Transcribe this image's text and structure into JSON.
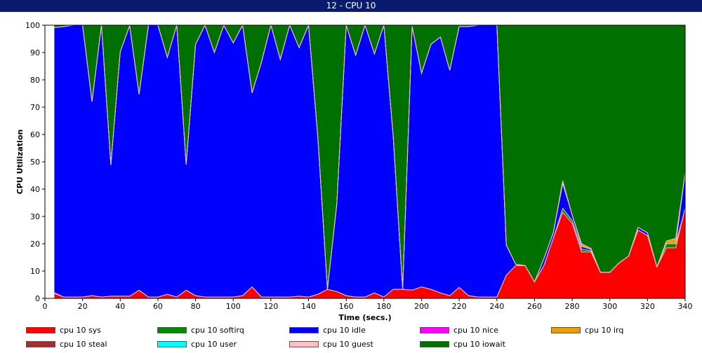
{
  "window_title": "12 - CPU 10",
  "chart_data": {
    "type": "area",
    "stacked": true,
    "xlabel": "Time (secs.)",
    "ylabel": "CPU Utilization",
    "xlim": [
      0,
      340
    ],
    "ylim": [
      0,
      100
    ],
    "x_ticks": [
      0,
      20,
      40,
      60,
      80,
      100,
      120,
      140,
      160,
      180,
      200,
      220,
      240,
      260,
      280,
      300,
      320,
      340
    ],
    "y_ticks": [
      0,
      10,
      20,
      30,
      40,
      50,
      60,
      70,
      80,
      90,
      100
    ],
    "grid": false,
    "legend_position": "bottom",
    "x": [
      5,
      10,
      15,
      20,
      25,
      30,
      35,
      40,
      45,
      50,
      55,
      60,
      65,
      70,
      75,
      80,
      85,
      90,
      95,
      100,
      105,
      110,
      115,
      120,
      125,
      130,
      135,
      140,
      145,
      150,
      155,
      160,
      165,
      170,
      175,
      180,
      185,
      190,
      195,
      200,
      205,
      210,
      215,
      220,
      225,
      230,
      235,
      240,
      245,
      250,
      255,
      260,
      265,
      270,
      275,
      280,
      285,
      290,
      295,
      300,
      305,
      310,
      315,
      320,
      325,
      330,
      335,
      340
    ],
    "series": [
      {
        "name": "cpu 10 sys",
        "color": "#ff0000",
        "values": [
          1.8,
          0.5,
          0.5,
          0.5,
          1,
          0.5,
          0.8,
          0.8,
          0.8,
          3,
          0.5,
          0.5,
          1.5,
          0.5,
          3,
          1,
          0.5,
          0.5,
          0.5,
          0.5,
          1,
          4.2,
          0.5,
          0.5,
          0.5,
          0.5,
          0.8,
          0.5,
          1.5,
          3.3,
          2.5,
          1,
          0.5,
          0.5,
          2,
          0.5,
          3.3,
          3.3,
          3,
          4.2,
          3.3,
          2,
          1,
          4,
          1,
          0.5,
          0.5,
          0.5,
          8.5,
          12,
          12,
          6,
          12,
          22,
          31.5,
          27.5,
          17,
          17,
          9.5,
          9.5,
          13,
          15.5,
          25,
          23,
          11.5,
          18.5,
          18.5,
          33
        ]
      },
      {
        "name": "cpu 10 softirq",
        "color": "#008c00",
        "values": [
          0.3,
          0,
          0,
          0,
          0,
          0,
          0,
          0,
          0,
          0,
          0,
          0,
          0,
          0,
          0,
          0,
          0,
          0,
          0,
          0,
          0,
          0,
          0,
          0,
          0,
          0,
          0,
          0,
          0,
          0,
          0,
          0,
          0,
          0,
          0,
          0,
          0,
          0,
          0,
          0,
          0,
          0,
          0,
          0,
          0,
          0,
          0,
          0,
          0,
          0,
          0,
          0,
          0,
          0,
          1.5,
          1,
          1,
          0.5,
          0,
          0,
          0,
          0,
          0,
          0,
          0,
          1.5,
          1.5,
          0
        ]
      },
      {
        "name": "cpu 10 idle",
        "color": "#0000ff",
        "values": [
          97,
          99,
          99.5,
          99.5,
          71,
          99.5,
          48,
          89.5,
          99,
          71.7,
          99.5,
          99.5,
          86.7,
          99.5,
          46,
          92,
          99.5,
          89.5,
          99.5,
          93,
          99,
          71,
          86,
          99.5,
          87,
          99.5,
          91,
          99.5,
          57,
          0,
          32,
          99,
          88.5,
          99.5,
          87.5,
          99.5,
          55.7,
          0,
          96.5,
          78.2,
          89.7,
          93.7,
          82.5,
          95.5,
          98.5,
          99.5,
          99.5,
          99.5,
          11,
          0.5,
          0,
          0,
          2.5,
          2,
          9,
          2,
          1,
          0.5,
          0,
          0,
          0,
          0,
          1,
          1,
          0,
          0,
          0,
          13
        ]
      },
      {
        "name": "cpu 10 nice",
        "color": "#ff00ff",
        "values": [
          0,
          0,
          0,
          0,
          0,
          0,
          0,
          0,
          0,
          0,
          0,
          0,
          0,
          0,
          0,
          0,
          0,
          0,
          0,
          0,
          0,
          0,
          0,
          0,
          0,
          0,
          0,
          0,
          0,
          0,
          0,
          0,
          0,
          0,
          0,
          0,
          0,
          0,
          0,
          0,
          0,
          0,
          0,
          0,
          0,
          0,
          0,
          0,
          0,
          0,
          0,
          0,
          0,
          0,
          1,
          0,
          0,
          0,
          0,
          0,
          0,
          0,
          0,
          0,
          0,
          0,
          0,
          0
        ]
      },
      {
        "name": "cpu 10 irq",
        "color": "#e8a000",
        "values": [
          0,
          0,
          0,
          0,
          0,
          0,
          0,
          0,
          0,
          0,
          0,
          0,
          0,
          0,
          0,
          0,
          0,
          0,
          0,
          0,
          0,
          0,
          0,
          0,
          0,
          0,
          0,
          0,
          0,
          0,
          0,
          0,
          0,
          0,
          0,
          0,
          0,
          0,
          0,
          0,
          0,
          0,
          0,
          0,
          0,
          0,
          0,
          0,
          0,
          0,
          0,
          0,
          0,
          0,
          0,
          0,
          1,
          0.3,
          0,
          0,
          0,
          0,
          0,
          0,
          0,
          1,
          2,
          0
        ]
      },
      {
        "name": "cpu 10 steal",
        "color": "#a03030",
        "values": [
          0,
          0,
          0,
          0,
          0,
          0,
          0,
          0,
          0,
          0,
          0,
          0,
          0,
          0,
          0,
          0,
          0,
          0,
          0,
          0,
          0,
          0,
          0,
          0,
          0,
          0,
          0,
          0,
          0,
          0,
          0,
          0,
          0,
          0,
          0,
          0,
          0,
          0,
          0,
          0,
          0,
          0,
          0,
          0,
          0,
          0,
          0,
          0,
          0,
          0,
          0,
          0,
          0,
          0,
          0,
          0,
          0,
          0,
          0,
          0,
          0,
          0,
          0,
          0,
          0,
          0,
          0,
          0
        ]
      },
      {
        "name": "cpu 10 user",
        "color": "#00ffff",
        "values": [
          0,
          0,
          0,
          0,
          0,
          0,
          0,
          0,
          0,
          0,
          0,
          0,
          0,
          0,
          0,
          0,
          0,
          0,
          0,
          0,
          0,
          0,
          0,
          0,
          0,
          0,
          0,
          0,
          0,
          0,
          0,
          0,
          0,
          0,
          0,
          0,
          0,
          0,
          0,
          0,
          0,
          0,
          0,
          0,
          0,
          0,
          0,
          0,
          0,
          0,
          0,
          0,
          0,
          0,
          0,
          0,
          0,
          0,
          0,
          0,
          0,
          0,
          0,
          0,
          0,
          0,
          0,
          0
        ]
      },
      {
        "name": "cpu 10 guest",
        "color": "#ffc0c0",
        "values": [
          0,
          0,
          0,
          0,
          0,
          0,
          0,
          0,
          0,
          0,
          0,
          0,
          0,
          0,
          0,
          0,
          0,
          0,
          0,
          0,
          0,
          0,
          0,
          0,
          0,
          0,
          0,
          0,
          0,
          0,
          0,
          0,
          0,
          0,
          0,
          0,
          0,
          0,
          0,
          0,
          0,
          0,
          0,
          0,
          0,
          0,
          0,
          0,
          0,
          0,
          0,
          0,
          0,
          0,
          0,
          0,
          0,
          0,
          0,
          0,
          0,
          0,
          0,
          0,
          0,
          0,
          0,
          0
        ]
      },
      {
        "name": "cpu 10 iowait",
        "color": "#007000",
        "values": [
          0.9,
          0.5,
          0,
          0,
          28,
          0,
          51.2,
          9.7,
          0.2,
          25.3,
          0,
          0,
          11.8,
          0,
          51,
          7,
          0,
          10,
          0,
          6.5,
          0,
          24.8,
          13.5,
          0,
          12.5,
          0,
          8.2,
          0,
          41.5,
          96.7,
          65.5,
          0,
          11,
          0,
          10.5,
          0,
          41,
          96.7,
          0.5,
          17.6,
          7,
          4.3,
          16.5,
          0.5,
          0.5,
          0,
          0,
          0,
          80.5,
          87.5,
          88,
          94,
          85.5,
          76,
          57,
          69.5,
          80,
          81.7,
          90.5,
          90.5,
          87,
          84.5,
          74,
          76,
          88.5,
          79,
          78,
          54
        ]
      }
    ]
  }
}
